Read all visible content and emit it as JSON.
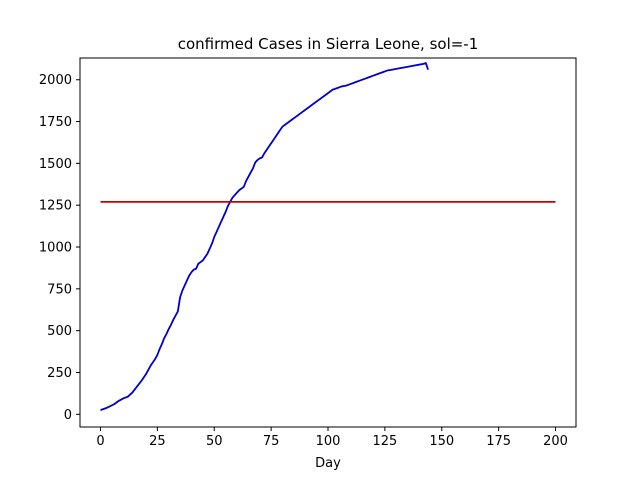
{
  "chart_data": {
    "type": "line",
    "title": "confirmed Cases in Sierra Leone, sol=-1",
    "xlabel": "Day",
    "ylabel": "",
    "xlim": [
      -9,
      209
    ],
    "ylim": [
      -76,
      2130
    ],
    "xticks": [
      0,
      25,
      50,
      75,
      100,
      125,
      150,
      175,
      200
    ],
    "yticks": [
      0,
      250,
      500,
      750,
      1000,
      1250,
      1500,
      1750,
      2000
    ],
    "grid": false,
    "legend": "none",
    "series": [
      {
        "color": "#0000cc",
        "x": [
          0,
          3,
          6,
          8,
          10,
          12,
          14,
          16,
          18,
          20,
          22,
          24,
          25,
          26,
          27,
          28,
          29,
          30,
          31,
          32,
          33,
          34,
          35,
          36,
          37,
          38,
          39,
          40,
          41,
          42,
          43,
          44,
          45,
          46,
          47,
          48,
          49,
          50,
          51,
          52,
          53,
          54,
          55,
          56,
          57,
          58,
          59,
          60,
          61,
          62,
          63,
          64,
          65,
          66,
          67,
          68,
          69,
          70,
          71,
          72,
          73,
          74,
          75,
          76,
          77,
          78,
          79,
          80,
          82,
          84,
          86,
          88,
          90,
          92,
          94,
          96,
          98,
          100,
          102,
          104,
          106,
          108,
          110,
          112,
          114,
          116,
          118,
          120,
          122,
          124,
          126,
          128,
          130,
          132,
          134,
          136,
          138,
          140,
          142,
          143,
          144
        ],
        "y": [
          25,
          40,
          60,
          80,
          95,
          105,
          130,
          165,
          200,
          240,
          290,
          330,
          355,
          390,
          420,
          455,
          480,
          510,
          535,
          565,
          590,
          615,
          700,
          740,
          770,
          800,
          830,
          850,
          865,
          870,
          900,
          910,
          920,
          940,
          960,
          990,
          1020,
          1060,
          1090,
          1120,
          1150,
          1180,
          1210,
          1245,
          1270,
          1295,
          1310,
          1325,
          1340,
          1350,
          1360,
          1395,
          1420,
          1445,
          1470,
          1505,
          1520,
          1530,
          1535,
          1560,
          1580,
          1600,
          1620,
          1640,
          1660,
          1680,
          1700,
          1720,
          1740,
          1760,
          1780,
          1800,
          1820,
          1840,
          1860,
          1880,
          1900,
          1920,
          1940,
          1950,
          1960,
          1965,
          1975,
          1985,
          1995,
          2005,
          2015,
          2025,
          2035,
          2045,
          2055,
          2060,
          2065,
          2070,
          2075,
          2080,
          2085,
          2090,
          2095,
          2100,
          2060
        ]
      },
      {
        "color": "#cc0000",
        "x": [
          0,
          200
        ],
        "y": [
          1270,
          1270
        ]
      }
    ]
  }
}
